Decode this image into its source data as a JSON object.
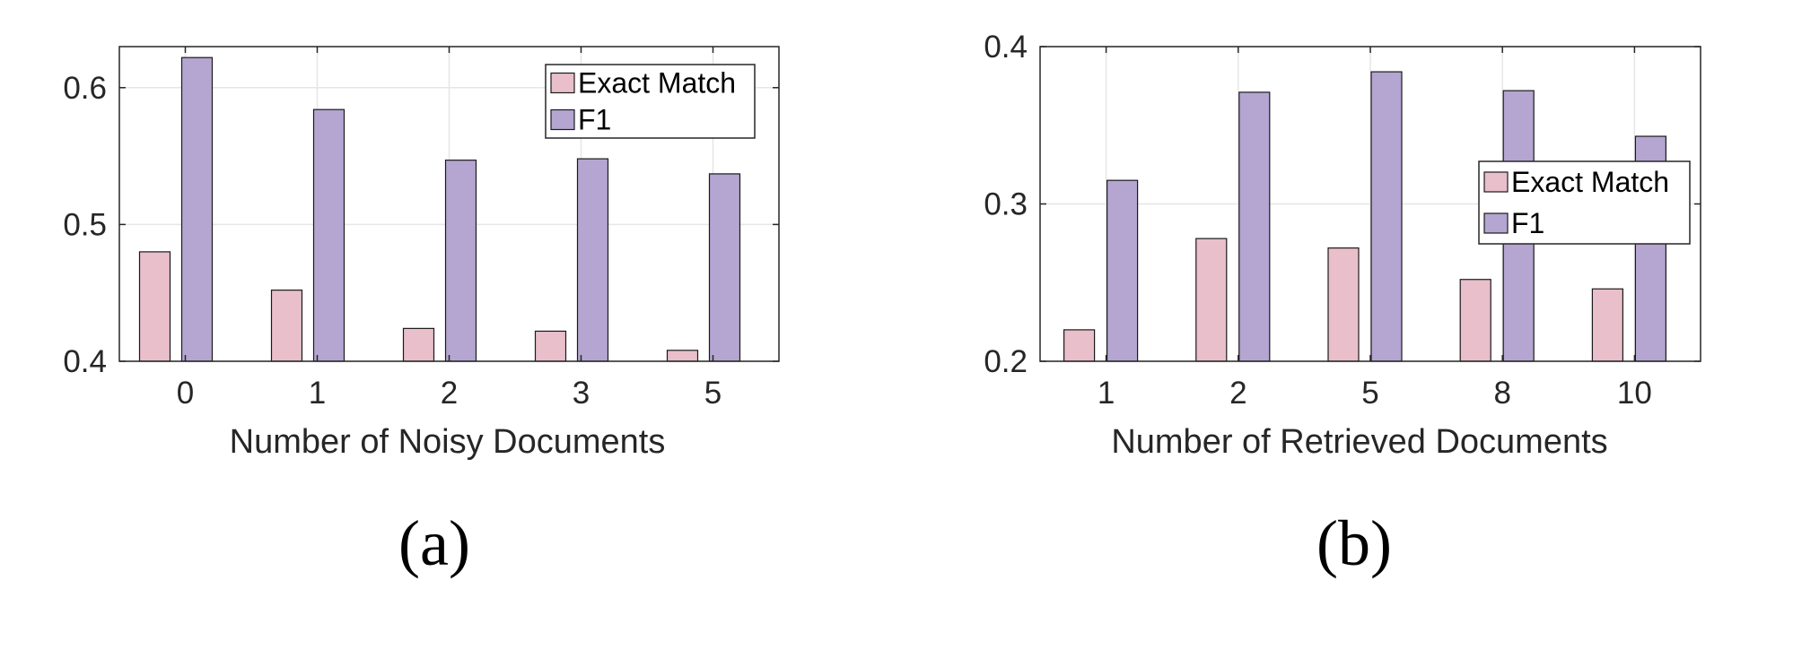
{
  "colors": {
    "exact_match": "#e8bfca",
    "f1": "#b4a5d1",
    "bar_edge": "#1a1a1a",
    "grid": "#e6e6e6",
    "axis": "#262626"
  },
  "chart_data": [
    {
      "type": "bar",
      "caption": "(a)",
      "xlabel": "Number of Noisy Documents",
      "ylabel": "",
      "categories": [
        "0",
        "1",
        "2",
        "3",
        "5"
      ],
      "ylim": [
        0.4,
        0.63
      ],
      "yticks": [
        0.4,
        0.5,
        0.6
      ],
      "ytick_labels": [
        "0.4",
        "0.5",
        "0.6"
      ],
      "grid": true,
      "legend_position": "top-right",
      "series": [
        {
          "name": "Exact Match",
          "values": [
            0.48,
            0.452,
            0.424,
            0.422,
            0.408
          ]
        },
        {
          "name": "F1",
          "values": [
            0.622,
            0.584,
            0.547,
            0.548,
            0.537
          ]
        }
      ]
    },
    {
      "type": "bar",
      "caption": "(b)",
      "xlabel": "Number of Retrieved Documents",
      "ylabel": "",
      "categories": [
        "1",
        "2",
        "5",
        "8",
        "10"
      ],
      "ylim": [
        0.2,
        0.4
      ],
      "yticks": [
        0.2,
        0.3,
        0.4
      ],
      "ytick_labels": [
        "0.2",
        "0.3",
        "0.4"
      ],
      "grid": true,
      "legend_position": "right",
      "series": [
        {
          "name": "Exact Match",
          "values": [
            0.22,
            0.278,
            0.272,
            0.252,
            0.246
          ]
        },
        {
          "name": "F1",
          "values": [
            0.315,
            0.371,
            0.384,
            0.372,
            0.343
          ]
        }
      ]
    }
  ]
}
